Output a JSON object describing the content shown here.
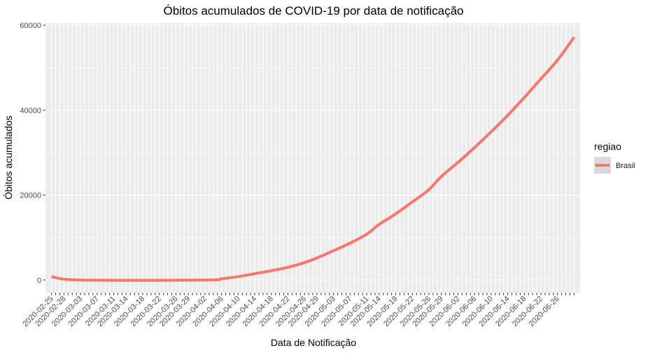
{
  "chart_data": {
    "type": "line",
    "title": "Óbitos acumulados de COVID-19 por data de notificação",
    "xlabel": "Data de Notificação",
    "ylabel": "Óbitos acumulados",
    "ylim": [
      -3000,
      60500
    ],
    "y_ticks": [
      0,
      20000,
      40000,
      60000
    ],
    "x_tick_labels": [
      "2020-02-25",
      "2020-02-28",
      "2020-03-03",
      "2020-03-07",
      "2020-03-11",
      "2020-03-14",
      "2020-03-18",
      "2020-03-22",
      "2020-03-26",
      "2020-03-29",
      "2020-04-02",
      "2020-04-06",
      "2020-04-10",
      "2020-04-14",
      "2020-04-18",
      "2020-04-22",
      "2020-04-26",
      "2020-04-29",
      "2020-05-03",
      "2020-05-07",
      "2020-05-11",
      "2020-05-14",
      "2020-05-18",
      "2020-05-22",
      "2020-05-26",
      "2020-05-29",
      "2020-06-02",
      "2020-06-06",
      "2020-06-10",
      "2020-06-14",
      "2020-06-18",
      "2020-06-22",
      "2020-06-26"
    ],
    "grid": true,
    "legend": {
      "title": "regiao",
      "position": "right"
    },
    "series": [
      {
        "name": "Brasil",
        "color": "#f8766d",
        "points": [
          {
            "x": "2020-02-25",
            "y": 800
          },
          {
            "x": "2020-03-03",
            "y": 0
          },
          {
            "x": "2020-04-02",
            "y": 0
          },
          {
            "x": "2020-04-06",
            "y": 300
          },
          {
            "x": "2020-04-10",
            "y": 800
          },
          {
            "x": "2020-04-14",
            "y": 1500
          },
          {
            "x": "2020-04-18",
            "y": 2200
          },
          {
            "x": "2020-04-22",
            "y": 3000
          },
          {
            "x": "2020-04-26",
            "y": 4100
          },
          {
            "x": "2020-04-29",
            "y": 5200
          },
          {
            "x": "2020-05-03",
            "y": 6900
          },
          {
            "x": "2020-05-07",
            "y": 8700
          },
          {
            "x": "2020-05-11",
            "y": 10800
          },
          {
            "x": "2020-05-14",
            "y": 13100
          },
          {
            "x": "2020-05-18",
            "y": 15600
          },
          {
            "x": "2020-05-22",
            "y": 18400
          },
          {
            "x": "2020-05-26",
            "y": 21300
          },
          {
            "x": "2020-05-29",
            "y": 24400
          },
          {
            "x": "2020-06-02",
            "y": 27700
          },
          {
            "x": "2020-06-06",
            "y": 31200
          },
          {
            "x": "2020-06-10",
            "y": 34900
          },
          {
            "x": "2020-06-14",
            "y": 38800
          },
          {
            "x": "2020-06-18",
            "y": 43000
          },
          {
            "x": "2020-06-22",
            "y": 47400
          },
          {
            "x": "2020-06-26",
            "y": 51800
          },
          {
            "x": "2020-06-30",
            "y": 57200
          }
        ]
      }
    ]
  }
}
